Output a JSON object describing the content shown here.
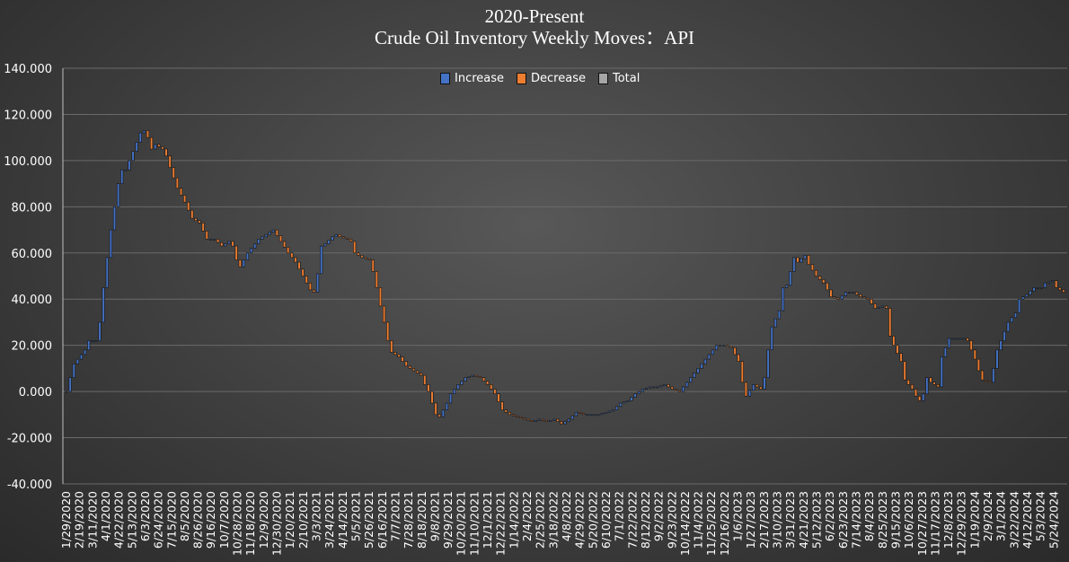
{
  "chart_data": {
    "type": "waterfall",
    "title": "2020-Present",
    "subtitle": "Crude Oil Inventory Weekly Moves：API",
    "ylim": [
      -40,
      140
    ],
    "yticks": [
      "140.000",
      "120.000",
      "100.000",
      "80.000",
      "60.000",
      "40.000",
      "20.000",
      "0.000",
      "-20.000",
      "-40.000"
    ],
    "ytick_values": [
      140,
      120,
      100,
      80,
      60,
      40,
      20,
      0,
      -20,
      -40
    ],
    "grid": true,
    "legend_position": "top-center",
    "legend": [
      {
        "label": "Increase",
        "color": "#4472c4"
      },
      {
        "label": "Decrease",
        "color": "#ed7d31"
      },
      {
        "label": "Total",
        "color": "#a5a5a5"
      }
    ],
    "xtick_labels": [
      "1/29/2020",
      "2/19/2020",
      "3/11/2020",
      "4/1/2020",
      "4/22/2020",
      "5/13/2020",
      "6/3/2020",
      "6/24/2020",
      "7/15/2020",
      "8/5/2020",
      "8/26/2020",
      "9/16/2020",
      "10/7/2020",
      "10/28/2020",
      "11/18/2020",
      "12/9/2020",
      "12/30/2020",
      "1/20/2021",
      "2/10/2021",
      "3/3/2021",
      "3/24/2021",
      "4/14/2021",
      "5/5/2021",
      "5/26/2021",
      "6/16/2021",
      "7/7/2021",
      "7/28/2021",
      "8/18/2021",
      "9/8/2021",
      "9/29/2021",
      "10/20/2021",
      "11/10/2021",
      "12/1/2021",
      "12/22/2021",
      "1/14/2022",
      "2/4/2022",
      "2/25/2022",
      "3/18/2022",
      "4/8/2022",
      "4/29/2022",
      "5/20/2022",
      "6/10/2022",
      "7/1/2022",
      "7/22/2022",
      "8/12/2022",
      "9/2/2022",
      "9/23/2022",
      "10/14/2022",
      "11/4/2022",
      "11/25/2022",
      "12/16/2022",
      "1/6/2023",
      "1/27/2023",
      "2/17/2023",
      "3/10/2023",
      "3/31/2023",
      "4/21/2023",
      "5/12/2023",
      "6/2/2023",
      "6/23/2023",
      "7/14/2023",
      "8/4/2023",
      "8/25/2023",
      "9/15/2023",
      "10/6/2023",
      "10/27/2023",
      "11/17/2023",
      "12/8/2023",
      "12/29/2023",
      "1/19/2024",
      "2/9/2024",
      "3/1/2024",
      "3/22/2024",
      "4/12/2024",
      "5/3/2024",
      "5/24/2024"
    ],
    "cumulative_keypoints": [
      [
        0,
        0
      ],
      [
        2,
        12
      ],
      [
        5,
        18
      ],
      [
        6,
        22
      ],
      [
        8,
        22
      ],
      [
        9,
        30
      ],
      [
        10,
        45
      ],
      [
        11,
        58
      ],
      [
        12,
        70
      ],
      [
        13,
        80
      ],
      [
        14,
        90
      ],
      [
        15,
        96
      ],
      [
        16,
        96
      ],
      [
        17,
        100
      ],
      [
        18,
        104
      ],
      [
        19,
        108
      ],
      [
        20,
        112
      ],
      [
        21,
        113
      ],
      [
        22,
        110
      ],
      [
        23,
        105
      ],
      [
        24,
        107
      ],
      [
        26,
        105
      ],
      [
        27,
        102
      ],
      [
        28,
        97
      ],
      [
        30,
        88
      ],
      [
        32,
        82
      ],
      [
        34,
        75
      ],
      [
        36,
        73
      ],
      [
        38,
        66
      ],
      [
        40,
        66
      ],
      [
        42,
        63
      ],
      [
        44,
        65
      ],
      [
        45,
        63
      ],
      [
        46,
        57
      ],
      [
        47,
        54
      ],
      [
        49,
        60
      ],
      [
        52,
        66
      ],
      [
        54,
        68
      ],
      [
        56,
        70
      ],
      [
        58,
        65
      ],
      [
        60,
        60
      ],
      [
        62,
        56
      ],
      [
        64,
        50
      ],
      [
        66,
        44
      ],
      [
        67,
        43
      ],
      [
        68,
        51
      ],
      [
        69,
        63
      ],
      [
        70,
        64
      ],
      [
        72,
        67
      ],
      [
        73,
        68
      ],
      [
        74,
        67
      ],
      [
        76,
        66
      ],
      [
        77,
        65
      ],
      [
        78,
        60
      ],
      [
        80,
        58
      ],
      [
        82,
        57
      ],
      [
        83,
        52
      ],
      [
        84,
        45
      ],
      [
        85,
        37
      ],
      [
        86,
        30
      ],
      [
        87,
        22
      ],
      [
        88,
        17
      ],
      [
        90,
        15
      ],
      [
        92,
        11
      ],
      [
        94,
        9
      ],
      [
        96,
        7
      ],
      [
        97,
        3
      ],
      [
        98,
        0
      ],
      [
        99,
        -5
      ],
      [
        100,
        -10
      ],
      [
        101,
        -11
      ],
      [
        102,
        -8
      ],
      [
        103,
        -5
      ],
      [
        104,
        -1
      ],
      [
        106,
        3
      ],
      [
        108,
        6
      ],
      [
        110,
        7
      ],
      [
        112,
        6
      ],
      [
        114,
        3
      ],
      [
        116,
        -1
      ],
      [
        118,
        -8
      ],
      [
        120,
        -10
      ],
      [
        122,
        -11
      ],
      [
        124,
        -12
      ],
      [
        126,
        -13
      ],
      [
        128,
        -12
      ],
      [
        130,
        -13
      ],
      [
        132,
        -12
      ],
      [
        134,
        -14
      ],
      [
        136,
        -12
      ],
      [
        138,
        -9
      ],
      [
        140,
        -10
      ],
      [
        142,
        -10
      ],
      [
        144,
        -10
      ],
      [
        146,
        -9
      ],
      [
        148,
        -8
      ],
      [
        150,
        -5
      ],
      [
        152,
        -4
      ],
      [
        154,
        -1
      ],
      [
        156,
        1
      ],
      [
        158,
        2
      ],
      [
        160,
        2
      ],
      [
        162,
        3
      ],
      [
        164,
        1
      ],
      [
        166,
        0
      ],
      [
        168,
        4
      ],
      [
        170,
        8
      ],
      [
        172,
        12
      ],
      [
        174,
        16
      ],
      [
        176,
        20
      ],
      [
        178,
        20
      ],
      [
        180,
        19
      ],
      [
        182,
        13
      ],
      [
        183,
        4
      ],
      [
        184,
        -2
      ],
      [
        186,
        3
      ],
      [
        188,
        1
      ],
      [
        189,
        6
      ],
      [
        190,
        18
      ],
      [
        191,
        28
      ],
      [
        193,
        35
      ],
      [
        194,
        45
      ],
      [
        195,
        46
      ],
      [
        196,
        52
      ],
      [
        197,
        58
      ],
      [
        198,
        56
      ],
      [
        200,
        59
      ],
      [
        201,
        55
      ],
      [
        203,
        50
      ],
      [
        205,
        47
      ],
      [
        207,
        41
      ],
      [
        209,
        40
      ],
      [
        211,
        43
      ],
      [
        213,
        43
      ],
      [
        215,
        41
      ],
      [
        217,
        40
      ],
      [
        219,
        36
      ],
      [
        221,
        37
      ],
      [
        222,
        36
      ],
      [
        223,
        24
      ],
      [
        224,
        20
      ],
      [
        226,
        13
      ],
      [
        227,
        5
      ],
      [
        229,
        1
      ],
      [
        230,
        -2
      ],
      [
        231,
        -4
      ],
      [
        232,
        -1
      ],
      [
        233,
        6
      ],
      [
        234,
        4
      ],
      [
        236,
        2
      ],
      [
        237,
        15
      ],
      [
        239,
        23
      ],
      [
        241,
        23
      ],
      [
        243,
        23
      ],
      [
        244,
        22
      ],
      [
        246,
        14
      ],
      [
        247,
        9
      ],
      [
        248,
        5
      ],
      [
        250,
        4
      ],
      [
        251,
        10
      ],
      [
        252,
        18
      ],
      [
        254,
        26
      ],
      [
        255,
        30
      ],
      [
        257,
        34
      ],
      [
        258,
        40
      ],
      [
        260,
        42
      ],
      [
        262,
        45
      ],
      [
        264,
        45
      ],
      [
        265,
        47
      ],
      [
        267,
        48
      ],
      [
        268,
        45
      ],
      [
        270,
        43
      ]
    ],
    "weeks": 271
  }
}
